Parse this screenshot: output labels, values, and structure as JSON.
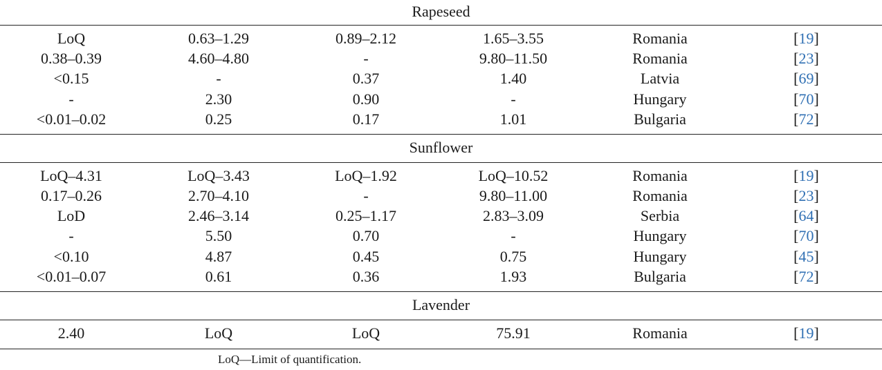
{
  "sections": [
    {
      "title": "Rapeseed",
      "rows": [
        [
          "LoQ",
          "0.63–1.29",
          "0.89–2.12",
          "1.65–3.55",
          "Romania",
          "19"
        ],
        [
          "0.38–0.39",
          "4.60–4.80",
          "-",
          "9.80–11.50",
          "Romania",
          "23"
        ],
        [
          "<0.15",
          "-",
          "0.37",
          "1.40",
          "Latvia",
          "69"
        ],
        [
          "-",
          "2.30",
          "0.90",
          "-",
          "Hungary",
          "70"
        ],
        [
          "<0.01–0.02",
          "0.25",
          "0.17",
          "1.01",
          "Bulgaria",
          "72"
        ]
      ]
    },
    {
      "title": "Sunflower",
      "rows": [
        [
          "LoQ–4.31",
          "LoQ–3.43",
          "LoQ–1.92",
          "LoQ–10.52",
          "Romania",
          "19"
        ],
        [
          "0.17–0.26",
          "2.70–4.10",
          "-",
          "9.80–11.00",
          "Romania",
          "23"
        ],
        [
          "LoD",
          "2.46–3.14",
          "0.25–1.17",
          "2.83–3.09",
          "Serbia",
          "64"
        ],
        [
          "-",
          "5.50",
          "0.70",
          "-",
          "Hungary",
          "70"
        ],
        [
          "<0.10",
          "4.87",
          "0.45",
          "0.75",
          "Hungary",
          "45"
        ],
        [
          "<0.01–0.07",
          "0.61",
          "0.36",
          "1.93",
          "Bulgaria",
          "72"
        ]
      ]
    },
    {
      "title": "Lavender",
      "rows": [
        [
          "2.40",
          "LoQ",
          "LoQ",
          "75.91",
          "Romania",
          "19"
        ]
      ]
    }
  ],
  "footnote": "LoQ—Limit of quantification.",
  "colors": {
    "reference_link": "#2f6fb3",
    "text": "#1a1a1a",
    "rule": "#222222"
  }
}
